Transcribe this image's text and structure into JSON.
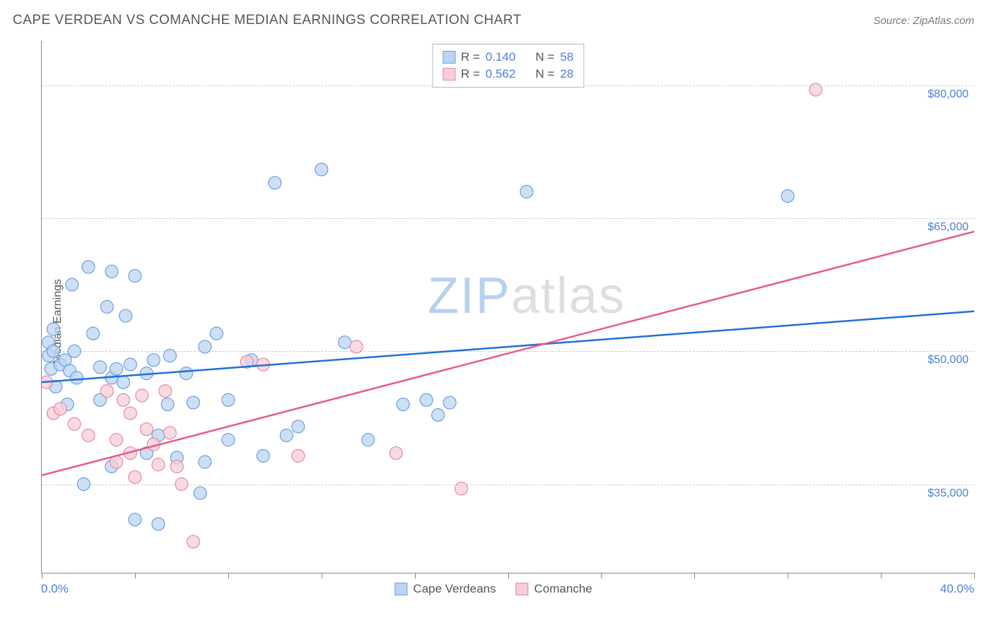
{
  "header": {
    "title": "CAPE VERDEAN VS COMANCHE MEDIAN EARNINGS CORRELATION CHART",
    "source_prefix": "Source: ",
    "source_name": "ZipAtlas.com"
  },
  "chart": {
    "type": "scatter",
    "ylabel": "Median Earnings",
    "watermark": {
      "z": "ZIP",
      "rest": "atlas"
    },
    "xlim": [
      0,
      40
    ],
    "ylim": [
      25000,
      85000
    ],
    "x_axis_labels": {
      "left": "0.0%",
      "right": "40.0%"
    },
    "y_gridlines": [
      {
        "value": 35000,
        "label": "$35,000"
      },
      {
        "value": 50000,
        "label": "$50,000"
      },
      {
        "value": 65000,
        "label": "$65,000"
      },
      {
        "value": 80000,
        "label": "$80,000"
      }
    ],
    "x_ticks_pct": [
      0,
      4,
      8,
      12,
      16,
      20,
      24,
      28,
      32,
      36,
      40
    ],
    "series": [
      {
        "name": "Cape Verdeans",
        "fill": "#bcd4f2",
        "stroke": "#6b9fdd",
        "line_color": "#1f6fd8",
        "r_value": "0.140",
        "n_value": "58",
        "marker_radius": 9,
        "fill_opacity": 0.75,
        "trend": {
          "x1": 0,
          "y1": 46500,
          "x2": 40,
          "y2": 54500
        },
        "points": [
          [
            0.3,
            51000
          ],
          [
            0.3,
            49500
          ],
          [
            0.4,
            48000
          ],
          [
            0.5,
            52500
          ],
          [
            0.5,
            50000
          ],
          [
            0.6,
            46000
          ],
          [
            0.8,
            48500
          ],
          [
            1.0,
            49000
          ],
          [
            1.1,
            44000
          ],
          [
            1.2,
            47800
          ],
          [
            1.3,
            57500
          ],
          [
            1.4,
            50000
          ],
          [
            1.5,
            47000
          ],
          [
            1.8,
            35000
          ],
          [
            2.0,
            59500
          ],
          [
            2.2,
            52000
          ],
          [
            2.5,
            48200
          ],
          [
            2.5,
            44500
          ],
          [
            2.8,
            55000
          ],
          [
            3.0,
            47000
          ],
          [
            3.0,
            37000
          ],
          [
            3.0,
            59000
          ],
          [
            3.2,
            48000
          ],
          [
            3.5,
            46500
          ],
          [
            3.6,
            54000
          ],
          [
            3.8,
            48500
          ],
          [
            4.0,
            31000
          ],
          [
            4.0,
            58500
          ],
          [
            4.5,
            47500
          ],
          [
            4.5,
            38500
          ],
          [
            4.8,
            49000
          ],
          [
            5.0,
            40500
          ],
          [
            5.0,
            30500
          ],
          [
            5.4,
            44000
          ],
          [
            5.5,
            49500
          ],
          [
            5.8,
            38000
          ],
          [
            6.2,
            47500
          ],
          [
            6.5,
            44200
          ],
          [
            6.8,
            34000
          ],
          [
            7.0,
            50500
          ],
          [
            7.0,
            37500
          ],
          [
            7.5,
            52000
          ],
          [
            8.0,
            44500
          ],
          [
            8.0,
            40000
          ],
          [
            9.0,
            49000
          ],
          [
            9.5,
            38200
          ],
          [
            10.0,
            69000
          ],
          [
            10.5,
            40500
          ],
          [
            11.0,
            41500
          ],
          [
            12.0,
            70500
          ],
          [
            13.0,
            51000
          ],
          [
            14.0,
            40000
          ],
          [
            15.5,
            44000
          ],
          [
            16.5,
            44500
          ],
          [
            17.0,
            42800
          ],
          [
            17.5,
            44200
          ],
          [
            20.8,
            68000
          ],
          [
            32.0,
            67500
          ]
        ]
      },
      {
        "name": "Comanche",
        "fill": "#f6cdd9",
        "stroke": "#e589a3",
        "line_color": "#e85a87",
        "r_value": "0.562",
        "n_value": "28",
        "marker_radius": 9,
        "fill_opacity": 0.75,
        "trend": {
          "x1": 0,
          "y1": 36000,
          "x2": 40,
          "y2": 63500
        },
        "points": [
          [
            0.2,
            46500
          ],
          [
            0.5,
            43000
          ],
          [
            0.8,
            43500
          ],
          [
            1.4,
            41800
          ],
          [
            2.0,
            40500
          ],
          [
            2.8,
            45500
          ],
          [
            3.2,
            40000
          ],
          [
            3.2,
            37500
          ],
          [
            3.5,
            44500
          ],
          [
            3.8,
            38500
          ],
          [
            3.8,
            43000
          ],
          [
            4.0,
            35800
          ],
          [
            4.3,
            45000
          ],
          [
            4.5,
            41200
          ],
          [
            4.8,
            39500
          ],
          [
            5.0,
            37200
          ],
          [
            5.3,
            45500
          ],
          [
            5.5,
            40800
          ],
          [
            5.8,
            37000
          ],
          [
            6.0,
            35000
          ],
          [
            6.5,
            28500
          ],
          [
            8.8,
            48800
          ],
          [
            9.5,
            48500
          ],
          [
            11.0,
            38200
          ],
          [
            13.5,
            50500
          ],
          [
            15.2,
            38500
          ],
          [
            18.0,
            34500
          ],
          [
            33.2,
            79500
          ]
        ]
      }
    ],
    "legend_top": {
      "r_label": "R =",
      "n_label": "N ="
    },
    "legend_bottom_labels": [
      "Cape Verdeans",
      "Comanche"
    ]
  }
}
